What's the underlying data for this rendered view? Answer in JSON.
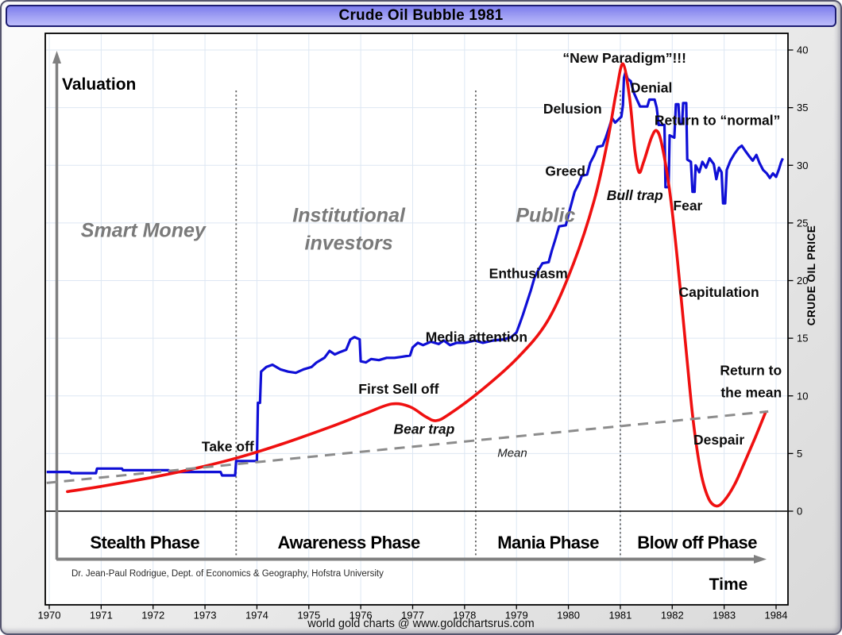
{
  "window": {
    "title": "Crude Oil Bubble 1981"
  },
  "footer": {
    "source_text": "world gold charts @ www.goldchartsrus.com"
  },
  "chart": {
    "valuation_label": "Valuation",
    "time_label": "Time",
    "y_axis_title": "CRUDE OIL PRICE",
    "attribution": "Dr. Jean-Paul Rodrigue, Dept. of Economics & Geography, Hofstra University"
  },
  "chart_data": {
    "type": "line",
    "title": "Crude Oil Bubble 1981",
    "x_axis": {
      "label": "Time",
      "ticks": [
        1970,
        1971,
        1972,
        1973,
        1974,
        1975,
        1976,
        1977,
        1978,
        1979,
        1980,
        1981,
        1982,
        1983,
        1984
      ],
      "range": [
        1969.9,
        1984.3
      ]
    },
    "y_axis": {
      "label": "CRUDE OIL PRICE",
      "ticks": [
        0,
        5,
        10,
        15,
        20,
        25,
        30,
        35,
        40
      ],
      "range": [
        0,
        40
      ],
      "side": "right"
    },
    "grid": true,
    "colors": {
      "actual": "#0f0fd6",
      "model": "#ef1010",
      "mean": "#8c8c8c",
      "grid": "#dde7f3",
      "phase_line": "#666666",
      "arrow": "#808080"
    },
    "phase_boundaries_years": [
      1973.6,
      1978.215,
      1981.0
    ],
    "phases": [
      {
        "label": "Stealth Phase",
        "x_year": 1971.84
      },
      {
        "label": "Awareness Phase",
        "x_year": 1975.77
      },
      {
        "label": "Mania Phase",
        "x_year": 1979.61
      },
      {
        "label": "Blow off Phase",
        "x_year": 1982.48
      }
    ],
    "series": [
      {
        "name": "crude-oil-price-actual",
        "style": "step",
        "color": "#0f0fd6",
        "width": 3.2,
        "points": [
          [
            1969.95,
            3.4
          ],
          [
            1970.4,
            3.4
          ],
          [
            1970.42,
            3.3
          ],
          [
            1970.9,
            3.3
          ],
          [
            1970.92,
            3.7
          ],
          [
            1971.4,
            3.7
          ],
          [
            1971.42,
            3.55
          ],
          [
            1972.3,
            3.55
          ],
          [
            1972.32,
            3.4
          ],
          [
            1973.3,
            3.4
          ],
          [
            1973.33,
            3.1
          ],
          [
            1973.58,
            3.1
          ],
          [
            1973.6,
            4.35
          ],
          [
            1974.0,
            4.35
          ],
          [
            1974.02,
            9.4
          ],
          [
            1974.06,
            9.4
          ],
          [
            1974.08,
            12.1
          ],
          [
            1974.18,
            12.5
          ],
          [
            1974.3,
            12.7
          ],
          [
            1974.45,
            12.3
          ],
          [
            1974.6,
            12.1
          ],
          [
            1974.75,
            12.0
          ],
          [
            1974.9,
            12.3
          ],
          [
            1975.05,
            12.5
          ],
          [
            1975.15,
            12.9
          ],
          [
            1975.3,
            13.3
          ],
          [
            1975.4,
            13.9
          ],
          [
            1975.5,
            13.6
          ],
          [
            1975.6,
            13.8
          ],
          [
            1975.72,
            14.0
          ],
          [
            1975.8,
            14.9
          ],
          [
            1975.88,
            15.1
          ],
          [
            1975.98,
            14.9
          ],
          [
            1976.0,
            13.0
          ],
          [
            1976.1,
            12.9
          ],
          [
            1976.2,
            13.2
          ],
          [
            1976.35,
            13.1
          ],
          [
            1976.5,
            13.3
          ],
          [
            1976.65,
            13.3
          ],
          [
            1976.8,
            13.4
          ],
          [
            1976.95,
            13.5
          ],
          [
            1977.0,
            14.2
          ],
          [
            1977.1,
            14.6
          ],
          [
            1977.2,
            14.4
          ],
          [
            1977.35,
            14.7
          ],
          [
            1977.5,
            14.5
          ],
          [
            1977.6,
            14.8
          ],
          [
            1977.72,
            14.4
          ],
          [
            1977.85,
            14.6
          ],
          [
            1978.0,
            14.6
          ],
          [
            1978.2,
            14.8
          ],
          [
            1978.35,
            14.6
          ],
          [
            1978.55,
            14.8
          ],
          [
            1978.75,
            14.9
          ],
          [
            1978.9,
            15.1
          ],
          [
            1979.0,
            15.5
          ],
          [
            1979.05,
            16.1
          ],
          [
            1979.12,
            17.0
          ],
          [
            1979.2,
            18.1
          ],
          [
            1979.28,
            19.2
          ],
          [
            1979.35,
            20.3
          ],
          [
            1979.42,
            20.9
          ],
          [
            1979.5,
            21.5
          ],
          [
            1979.62,
            21.6
          ],
          [
            1979.68,
            22.6
          ],
          [
            1979.75,
            23.6
          ],
          [
            1979.82,
            24.7
          ],
          [
            1979.95,
            24.8
          ],
          [
            1980.0,
            25.7
          ],
          [
            1980.06,
            26.7
          ],
          [
            1980.12,
            27.7
          ],
          [
            1980.2,
            28.4
          ],
          [
            1980.26,
            29.1
          ],
          [
            1980.36,
            29.2
          ],
          [
            1980.42,
            30.2
          ],
          [
            1980.5,
            30.9
          ],
          [
            1980.56,
            31.6
          ],
          [
            1980.66,
            31.7
          ],
          [
            1980.72,
            32.4
          ],
          [
            1980.78,
            33.2
          ],
          [
            1980.84,
            34.1
          ],
          [
            1980.9,
            33.7
          ],
          [
            1980.97,
            34.0
          ],
          [
            1981.02,
            34.2
          ],
          [
            1981.05,
            35.2
          ],
          [
            1981.07,
            37.6
          ],
          [
            1981.1,
            38.1
          ],
          [
            1981.14,
            37.5
          ],
          [
            1981.2,
            37.3
          ],
          [
            1981.26,
            36.3
          ],
          [
            1981.32,
            35.7
          ],
          [
            1981.38,
            35.1
          ],
          [
            1981.52,
            35.1
          ],
          [
            1981.56,
            35.7
          ],
          [
            1981.66,
            35.7
          ],
          [
            1981.7,
            35.0
          ],
          [
            1981.74,
            33.5
          ],
          [
            1981.85,
            33.5
          ],
          [
            1981.87,
            28.1
          ],
          [
            1981.93,
            28.1
          ],
          [
            1981.95,
            32.6
          ],
          [
            1982.04,
            32.4
          ],
          [
            1982.07,
            35.3
          ],
          [
            1982.12,
            35.3
          ],
          [
            1982.14,
            33.6
          ],
          [
            1982.19,
            33.6
          ],
          [
            1982.21,
            35.4
          ],
          [
            1982.27,
            35.4
          ],
          [
            1982.29,
            30.5
          ],
          [
            1982.36,
            30.3
          ],
          [
            1982.39,
            27.7
          ],
          [
            1982.43,
            27.7
          ],
          [
            1982.45,
            30.0
          ],
          [
            1982.52,
            29.4
          ],
          [
            1982.58,
            30.3
          ],
          [
            1982.65,
            29.8
          ],
          [
            1982.72,
            30.6
          ],
          [
            1982.8,
            30.1
          ],
          [
            1982.85,
            28.8
          ],
          [
            1982.9,
            29.8
          ],
          [
            1982.95,
            29.4
          ],
          [
            1982.98,
            26.7
          ],
          [
            1983.02,
            26.7
          ],
          [
            1983.05,
            29.6
          ],
          [
            1983.12,
            30.4
          ],
          [
            1983.2,
            31.0
          ],
          [
            1983.28,
            31.5
          ],
          [
            1983.34,
            31.7
          ],
          [
            1983.4,
            31.3
          ],
          [
            1983.48,
            30.8
          ],
          [
            1983.55,
            30.4
          ],
          [
            1983.62,
            30.9
          ],
          [
            1983.68,
            30.2
          ],
          [
            1983.75,
            29.6
          ],
          [
            1983.82,
            29.3
          ],
          [
            1983.88,
            28.9
          ],
          [
            1983.94,
            29.3
          ],
          [
            1984.0,
            29.0
          ],
          [
            1984.05,
            29.6
          ],
          [
            1984.1,
            30.3
          ],
          [
            1984.13,
            30.6
          ]
        ]
      },
      {
        "name": "bubble-model-curve",
        "style": "smooth",
        "color": "#ef1010",
        "width": 3.6,
        "points": [
          [
            1970.35,
            1.7
          ],
          [
            1971.0,
            2.15
          ],
          [
            1972.0,
            2.95
          ],
          [
            1972.8,
            3.7
          ],
          [
            1973.6,
            4.6
          ],
          [
            1974.5,
            5.85
          ],
          [
            1975.5,
            7.45
          ],
          [
            1976.1,
            8.5
          ],
          [
            1976.6,
            9.3
          ],
          [
            1976.95,
            9.05
          ],
          [
            1977.25,
            8.2
          ],
          [
            1977.45,
            7.85
          ],
          [
            1977.7,
            8.4
          ],
          [
            1978.3,
            10.4
          ],
          [
            1979.0,
            13.2
          ],
          [
            1979.6,
            16.5
          ],
          [
            1980.1,
            21.5
          ],
          [
            1980.5,
            27.0
          ],
          [
            1980.75,
            32.0
          ],
          [
            1980.92,
            36.3
          ],
          [
            1981.05,
            38.8
          ],
          [
            1981.18,
            35.8
          ],
          [
            1981.28,
            31.3
          ],
          [
            1981.36,
            29.4
          ],
          [
            1981.45,
            30.3
          ],
          [
            1981.6,
            32.4
          ],
          [
            1981.7,
            33.0
          ],
          [
            1981.8,
            31.8
          ],
          [
            1981.95,
            27.8
          ],
          [
            1982.1,
            21.8
          ],
          [
            1982.25,
            14.8
          ],
          [
            1982.4,
            8.0
          ],
          [
            1982.55,
            3.4
          ],
          [
            1982.7,
            1.1
          ],
          [
            1982.85,
            0.45
          ],
          [
            1983.0,
            0.9
          ],
          [
            1983.2,
            2.3
          ],
          [
            1983.4,
            4.3
          ],
          [
            1983.6,
            6.4
          ],
          [
            1983.8,
            8.6
          ]
        ]
      },
      {
        "name": "mean-line",
        "style": "dashed",
        "color": "#8c8c8c",
        "width": 3,
        "points": [
          [
            1969.95,
            2.45
          ],
          [
            1983.85,
            8.65
          ]
        ]
      }
    ],
    "annotations": [
      {
        "name": "smart-money",
        "text": "Smart Money",
        "x_year": 1971.81,
        "y_price": 23.8,
        "class": "big-gray",
        "anchor": "middle"
      },
      {
        "name": "institutional-investors",
        "text": "Institutional\ninvestors",
        "x_year": 1975.77,
        "y_price": 25.1,
        "class": "big-gray",
        "anchor": "middle"
      },
      {
        "name": "public",
        "text": "Public",
        "x_year": 1979.56,
        "y_price": 25.1,
        "class": "big-gray",
        "anchor": "middle"
      },
      {
        "name": "take-off",
        "text": "Take off",
        "x_year": 1973.44,
        "y_price": 5.2,
        "class": "label",
        "anchor": "middle"
      },
      {
        "name": "first-sell-off",
        "text": "First Sell off",
        "x_year": 1976.73,
        "y_price": 10.2,
        "class": "label",
        "anchor": "middle"
      },
      {
        "name": "bear-trap",
        "text": "Bear trap",
        "x_year": 1977.22,
        "y_price": 6.7,
        "class": "label-italic",
        "anchor": "middle"
      },
      {
        "name": "media-attention",
        "text": "Media attention",
        "x_year": 1978.23,
        "y_price": 14.7,
        "class": "label",
        "anchor": "middle"
      },
      {
        "name": "enthusiasm",
        "text": "Enthusiasm",
        "x_year": 1979.23,
        "y_price": 20.2,
        "class": "label",
        "anchor": "middle"
      },
      {
        "name": "greed",
        "text": "Greed",
        "x_year": 1979.94,
        "y_price": 29.1,
        "class": "label",
        "anchor": "middle"
      },
      {
        "name": "delusion",
        "text": "Delusion",
        "x_year": 1980.08,
        "y_price": 34.5,
        "class": "label",
        "anchor": "middle"
      },
      {
        "name": "new-paradigm",
        "text": "“New Paradigm”!!!",
        "x_year": 1981.08,
        "y_price": 38.9,
        "class": "label",
        "anchor": "middle"
      },
      {
        "name": "denial",
        "text": "Denial",
        "x_year": 1981.6,
        "y_price": 36.3,
        "class": "label",
        "anchor": "middle"
      },
      {
        "name": "return-to-normal",
        "text": "Return to “normal”",
        "x_year": 1982.87,
        "y_price": 33.5,
        "class": "label",
        "anchor": "middle"
      },
      {
        "name": "bull-trap",
        "text": "Bull trap",
        "x_year": 1981.28,
        "y_price": 27.0,
        "class": "label-italic",
        "anchor": "middle"
      },
      {
        "name": "fear",
        "text": "Fear",
        "x_year": 1982.3,
        "y_price": 26.1,
        "class": "label",
        "anchor": "middle"
      },
      {
        "name": "capitulation",
        "text": "Capitulation",
        "x_year": 1982.9,
        "y_price": 18.6,
        "class": "label",
        "anchor": "middle"
      },
      {
        "name": "return-to-the-mean",
        "text": "Return to\nthe mean",
        "x_year": 1984.11,
        "y_price": 11.8,
        "class": "label",
        "anchor": "end"
      },
      {
        "name": "despair",
        "text": "Despair",
        "x_year": 1982.9,
        "y_price": 5.8,
        "class": "label",
        "anchor": "middle"
      },
      {
        "name": "mean",
        "text": "Mean",
        "x_year": 1978.92,
        "y_price": 4.7,
        "class": "mean-label",
        "anchor": "middle"
      }
    ]
  }
}
